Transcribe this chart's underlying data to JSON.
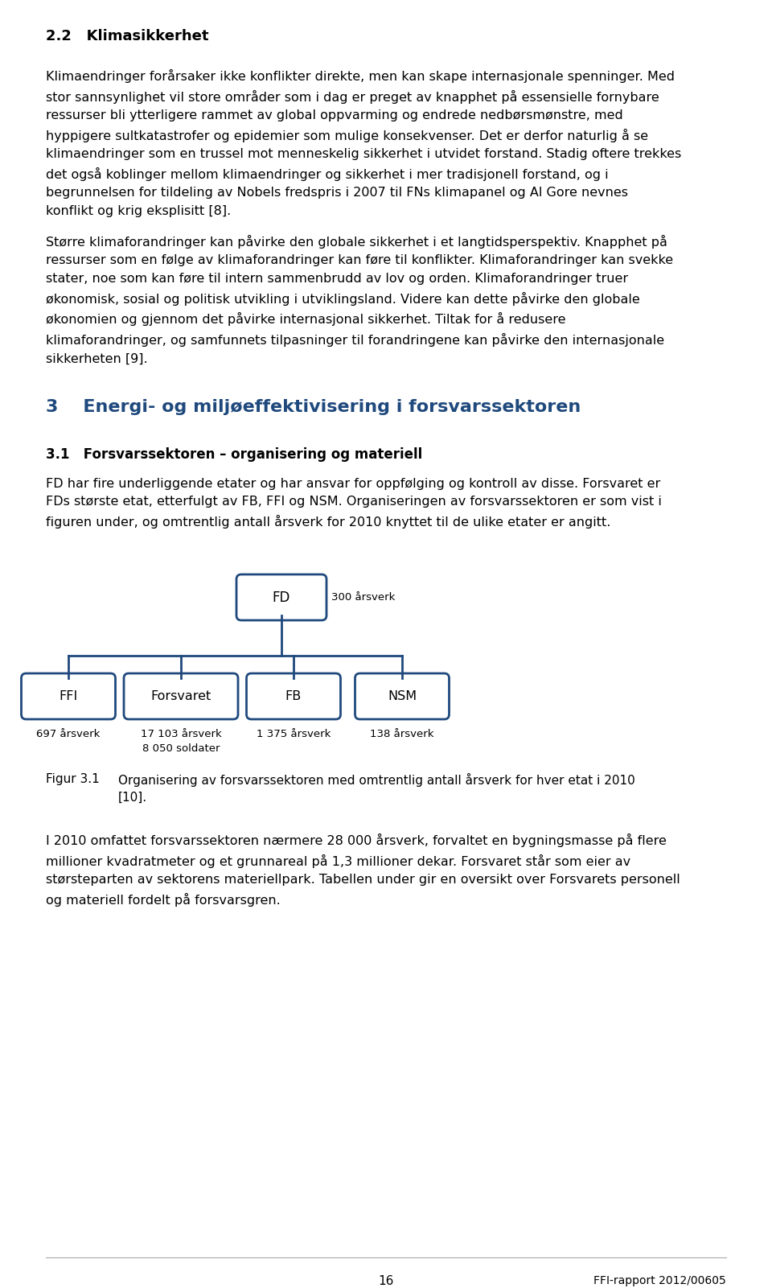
{
  "bg_color": "#ffffff",
  "text_color": "#000000",
  "heading_color": "#1f497d",
  "box_color": "#1f497d",
  "section_22_title": "2.2   Klimasikkerhet",
  "para1": "Klimaendringer forårsaker ikke konflikter direkte, men kan skape internasjonale spenninger. Med\nstor sannsynlighet vil store områder som i dag er preget av knapphet på essensielle fornybare\nressurser bli ytterligere rammet av global oppvarming og endrede nedbørsmønstre, med\nhyppigere sultkatastrofer og epidemier som mulige konsekvenser. Det er derfor naturlig å se\nklimaendringer som en trussel mot menneskelig sikkerhet i utvidet forstand. Stadig oftere trekkes\ndet også koblinger mellom klimaendringer og sikkerhet i mer tradisjonell forstand, og i\nbegrunnelsen for tildeling av Nobels fredspris i 2007 til FNs klimapanel og Al Gore nevnes\nkonflikt og krig eksplisitt [8].",
  "para2": "Større klimaforandringer kan påvirke den globale sikkerhet i et langtidsperspektiv. Knapphet på\nressurser som en følge av klimaforandringer kan føre til konflikter. Klimaforandringer kan svekke\nstater, noe som kan føre til intern sammenbrudd av lov og orden. Klimaforandringer truer\nøkonomisk, sosial og politisk utvikling i utviklingsland. Videre kan dette påvirke den globale\nøkonomien og gjennom det påvirke internasjonal sikkerhet. Tiltak for å redusere\nklimaforandringer, og samfunnets tilpasninger til forandringene kan påvirke den internasjonale\nsikkerheten [9].",
  "section_3_title": "3    Energi- og miljøeffektivisering i forsvarssektoren",
  "section_31_title": "3.1   Forsvarssektoren – organisering og materiell",
  "para3": "FD har fire underliggende etater og har ansvar for oppfølging og kontroll av disse. Forsvaret er\nFDs største etat, etterfulgt av FB, FFI og NSM. Organiseringen av forsvarssektoren er som vist i\nfiguren under, og omtrentlig antall årsverk for 2010 knyttet til de ulike etater er angitt.",
  "fig_caption_label": "Figur 3.1",
  "fig_caption_text": "Organisering av forsvarssektoren med omtrentlig antall årsverk for hver etat i 2010\n[10].",
  "para4": "I 2010 omfattet forsvarssektoren nærmere 28 000 årsverk, forvaltet en bygningsmasse på flere\nmillioner kvadratmeter og et grunnareal på 1,3 millioner dekar. Forsvaret står som eier av\nstørsteparten av sektorens materiellpark. Tabellen under gir en oversikt over Forsvarets personell\nog materiell fordelt på forsvarsgren.",
  "footer_page": "16",
  "footer_right": "FFI-rapport 2012/00605"
}
